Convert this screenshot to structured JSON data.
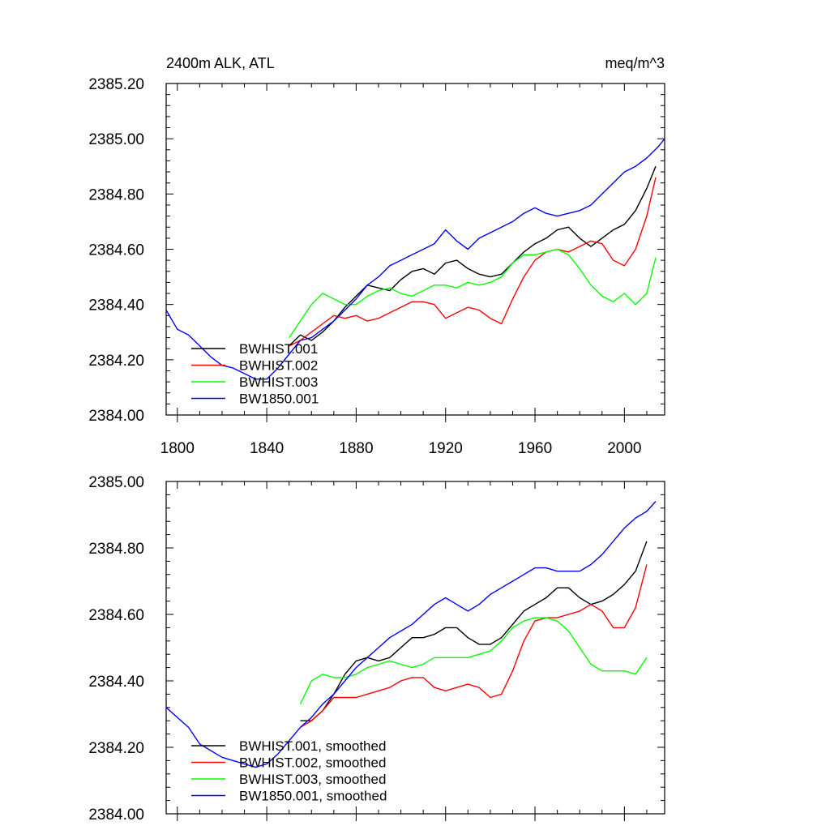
{
  "chart_data": [
    {
      "type": "line",
      "title": "2400m ALK, ATL",
      "units": "meq/m^3",
      "xlim": [
        1795,
        2018
      ],
      "ylim": [
        2384.0,
        2385.2
      ],
      "x_ticks": [
        1800,
        1840,
        1880,
        1920,
        1960,
        2000
      ],
      "x_tick_labels": [
        "1800",
        "1840",
        "1880",
        "1920",
        "1960",
        "2000"
      ],
      "y_ticks": [
        2384.0,
        2384.2,
        2384.4,
        2384.6,
        2384.8,
        2385.0,
        2385.2
      ],
      "y_tick_labels": [
        "2384.00",
        "2384.20",
        "2384.40",
        "2384.60",
        "2384.80",
        "2385.00",
        "2385.20"
      ],
      "legend_position": "bottom-left",
      "series": [
        {
          "name": "BWHIST.001",
          "color": "#000000",
          "x": [
            1850,
            1855,
            1860,
            1865,
            1870,
            1875,
            1880,
            1885,
            1890,
            1895,
            1900,
            1905,
            1910,
            1915,
            1920,
            1925,
            1930,
            1935,
            1940,
            1945,
            1950,
            1955,
            1960,
            1965,
            1970,
            1975,
            1980,
            1985,
            1990,
            1995,
            2000,
            2005,
            2010,
            2014
          ],
          "y": [
            2384.25,
            2384.29,
            2384.27,
            2384.3,
            2384.34,
            2384.39,
            2384.43,
            2384.47,
            2384.46,
            2384.45,
            2384.49,
            2384.52,
            2384.53,
            2384.51,
            2384.55,
            2384.56,
            2384.53,
            2384.51,
            2384.5,
            2384.51,
            2384.55,
            2384.59,
            2384.62,
            2384.64,
            2384.67,
            2384.68,
            2384.64,
            2384.61,
            2384.64,
            2384.67,
            2384.69,
            2384.74,
            2384.82,
            2384.9
          ]
        },
        {
          "name": "BWHIST.002",
          "color": "#ff0000",
          "x": [
            1850,
            1855,
            1860,
            1865,
            1870,
            1875,
            1880,
            1885,
            1890,
            1895,
            1900,
            1905,
            1910,
            1915,
            1920,
            1925,
            1930,
            1935,
            1940,
            1945,
            1950,
            1955,
            1960,
            1965,
            1970,
            1975,
            1980,
            1985,
            1990,
            1995,
            2000,
            2005,
            2010,
            2014
          ],
          "y": [
            2384.25,
            2384.27,
            2384.3,
            2384.33,
            2384.36,
            2384.35,
            2384.36,
            2384.34,
            2384.35,
            2384.37,
            2384.39,
            2384.41,
            2384.41,
            2384.4,
            2384.35,
            2384.37,
            2384.39,
            2384.38,
            2384.35,
            2384.33,
            2384.42,
            2384.5,
            2384.56,
            2384.59,
            2384.6,
            2384.59,
            2384.61,
            2384.63,
            2384.62,
            2384.56,
            2384.54,
            2384.6,
            2384.72,
            2384.86
          ]
        },
        {
          "name": "BWHIST.003",
          "color": "#00ff00",
          "x": [
            1850,
            1855,
            1860,
            1865,
            1870,
            1875,
            1880,
            1885,
            1890,
            1895,
            1900,
            1905,
            1910,
            1915,
            1920,
            1925,
            1930,
            1935,
            1940,
            1945,
            1950,
            1955,
            1960,
            1965,
            1970,
            1975,
            1980,
            1985,
            1990,
            1995,
            2000,
            2005,
            2010,
            2014
          ],
          "y": [
            2384.28,
            2384.34,
            2384.4,
            2384.44,
            2384.42,
            2384.4,
            2384.4,
            2384.43,
            2384.45,
            2384.46,
            2384.44,
            2384.43,
            2384.45,
            2384.47,
            2384.47,
            2384.46,
            2384.48,
            2384.47,
            2384.48,
            2384.5,
            2384.55,
            2384.58,
            2384.58,
            2384.59,
            2384.6,
            2384.58,
            2384.53,
            2384.47,
            2384.43,
            2384.41,
            2384.44,
            2384.4,
            2384.44,
            2384.57
          ]
        },
        {
          "name": "BW1850.001",
          "color": "#0000ff",
          "x": [
            1795,
            1800,
            1805,
            1810,
            1815,
            1820,
            1825,
            1830,
            1835,
            1840,
            1845,
            1850,
            1855,
            1860,
            1865,
            1870,
            1875,
            1880,
            1885,
            1890,
            1895,
            1900,
            1905,
            1910,
            1915,
            1920,
            1925,
            1930,
            1935,
            1940,
            1945,
            1950,
            1955,
            1960,
            1965,
            1970,
            1975,
            1980,
            1985,
            1990,
            1995,
            2000,
            2005,
            2010,
            2015,
            2018
          ],
          "y": [
            2384.38,
            2384.31,
            2384.29,
            2384.25,
            2384.21,
            2384.18,
            2384.17,
            2384.15,
            2384.13,
            2384.13,
            2384.17,
            2384.22,
            2384.27,
            2384.28,
            2384.31,
            2384.34,
            2384.38,
            2384.42,
            2384.47,
            2384.5,
            2384.54,
            2384.56,
            2384.58,
            2384.6,
            2384.62,
            2384.67,
            2384.63,
            2384.6,
            2384.64,
            2384.66,
            2384.68,
            2384.7,
            2384.73,
            2384.75,
            2384.73,
            2384.72,
            2384.73,
            2384.74,
            2384.76,
            2384.8,
            2384.84,
            2384.88,
            2384.9,
            2384.93,
            2384.97,
            2385.0
          ]
        }
      ]
    },
    {
      "type": "line",
      "title": "",
      "xlim": [
        1795,
        2018
      ],
      "ylim": [
        2384.0,
        2385.0
      ],
      "x_ticks": [
        1800,
        1840,
        1880,
        1920,
        1960,
        2000
      ],
      "y_ticks": [
        2384.0,
        2384.2,
        2384.4,
        2384.6,
        2384.8,
        2385.0
      ],
      "y_tick_labels": [
        "2384.00",
        "2384.20",
        "2384.40",
        "2384.60",
        "2384.80",
        "2385.00"
      ],
      "legend_position": "bottom-left",
      "series": [
        {
          "name": "BWHIST.001, smoothed",
          "color": "#000000",
          "x": [
            1855,
            1860,
            1865,
            1870,
            1875,
            1880,
            1885,
            1890,
            1895,
            1900,
            1905,
            1910,
            1915,
            1920,
            1925,
            1930,
            1935,
            1940,
            1945,
            1950,
            1955,
            1960,
            1965,
            1970,
            1975,
            1980,
            1985,
            1990,
            1995,
            2000,
            2005,
            2010
          ],
          "y": [
            2384.28,
            2384.28,
            2384.31,
            2384.36,
            2384.42,
            2384.46,
            2384.47,
            2384.46,
            2384.47,
            2384.5,
            2384.53,
            2384.53,
            2384.54,
            2384.56,
            2384.56,
            2384.53,
            2384.51,
            2384.51,
            2384.53,
            2384.57,
            2384.61,
            2384.63,
            2384.65,
            2384.68,
            2384.68,
            2384.65,
            2384.63,
            2384.64,
            2384.66,
            2384.69,
            2384.73,
            2384.82
          ]
        },
        {
          "name": "BWHIST.002, smoothed",
          "color": "#ff0000",
          "x": [
            1855,
            1860,
            1865,
            1870,
            1875,
            1880,
            1885,
            1890,
            1895,
            1900,
            1905,
            1910,
            1915,
            1920,
            1925,
            1930,
            1935,
            1940,
            1945,
            1950,
            1955,
            1960,
            1965,
            1970,
            1975,
            1980,
            1985,
            1990,
            1995,
            2000,
            2005,
            2010
          ],
          "y": [
            2384.26,
            2384.28,
            2384.31,
            2384.35,
            2384.35,
            2384.35,
            2384.36,
            2384.37,
            2384.38,
            2384.4,
            2384.41,
            2384.41,
            2384.38,
            2384.37,
            2384.38,
            2384.39,
            2384.38,
            2384.35,
            2384.36,
            2384.43,
            2384.52,
            2384.58,
            2384.59,
            2384.59,
            2384.6,
            2384.61,
            2384.63,
            2384.61,
            2384.56,
            2384.56,
            2384.62,
            2384.75
          ]
        },
        {
          "name": "BWHIST.003, smoothed",
          "color": "#00ff00",
          "x": [
            1855,
            1860,
            1865,
            1870,
            1875,
            1880,
            1885,
            1890,
            1895,
            1900,
            1905,
            1910,
            1915,
            1920,
            1925,
            1930,
            1935,
            1940,
            1945,
            1950,
            1955,
            1960,
            1965,
            1970,
            1975,
            1980,
            1985,
            1990,
            1995,
            2000,
            2005,
            2010
          ],
          "y": [
            2384.33,
            2384.4,
            2384.42,
            2384.41,
            2384.41,
            2384.42,
            2384.44,
            2384.45,
            2384.46,
            2384.45,
            2384.44,
            2384.45,
            2384.47,
            2384.47,
            2384.47,
            2384.47,
            2384.48,
            2384.49,
            2384.52,
            2384.56,
            2384.58,
            2384.59,
            2384.59,
            2384.58,
            2384.55,
            2384.5,
            2384.45,
            2384.43,
            2384.43,
            2384.43,
            2384.42,
            2384.47
          ]
        },
        {
          "name": "BW1850.001, smoothed",
          "color": "#0000ff",
          "x": [
            1795,
            1800,
            1805,
            1810,
            1815,
            1820,
            1825,
            1830,
            1835,
            1840,
            1845,
            1850,
            1855,
            1860,
            1865,
            1870,
            1875,
            1880,
            1885,
            1890,
            1895,
            1900,
            1905,
            1910,
            1915,
            1920,
            1925,
            1930,
            1935,
            1940,
            1945,
            1950,
            1955,
            1960,
            1965,
            1970,
            1975,
            1980,
            1985,
            1990,
            1995,
            2000,
            2005,
            2010,
            2014
          ],
          "y": [
            2384.32,
            2384.29,
            2384.26,
            2384.21,
            2384.19,
            2384.17,
            2384.16,
            2384.15,
            2384.14,
            2384.15,
            2384.18,
            2384.22,
            2384.26,
            2384.29,
            2384.33,
            2384.36,
            2384.4,
            2384.44,
            2384.47,
            2384.5,
            2384.53,
            2384.55,
            2384.57,
            2384.6,
            2384.63,
            2384.65,
            2384.63,
            2384.61,
            2384.63,
            2384.66,
            2384.68,
            2384.7,
            2384.72,
            2384.74,
            2384.74,
            2384.73,
            2384.73,
            2384.73,
            2384.75,
            2384.78,
            2384.82,
            2384.86,
            2384.89,
            2384.91,
            2384.94
          ]
        }
      ]
    }
  ]
}
